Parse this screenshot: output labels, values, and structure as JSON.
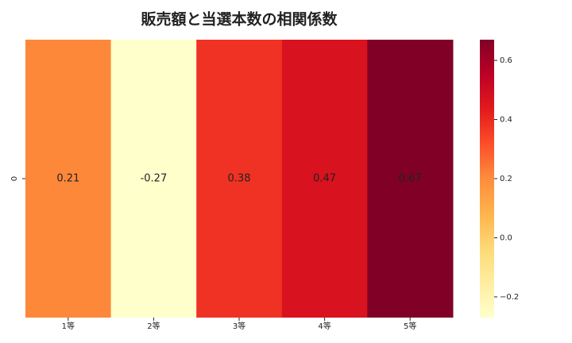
{
  "chart_data": {
    "type": "heatmap",
    "title": "販売額と当選本数の相関係数",
    "categories": [
      "1等",
      "2等",
      "3等",
      "4等",
      "5等"
    ],
    "rows": [
      "0"
    ],
    "values": [
      [
        0.21,
        -0.27,
        0.38,
        0.47,
        0.67
      ]
    ],
    "cmap": "YlOrRd",
    "clim": [
      -0.27,
      0.67
    ],
    "cticks": [
      {
        "value": -0.2,
        "label": "−0.2"
      },
      {
        "value": 0,
        "label": "0.0"
      },
      0.2,
      0.4,
      0.6
    ]
  }
}
